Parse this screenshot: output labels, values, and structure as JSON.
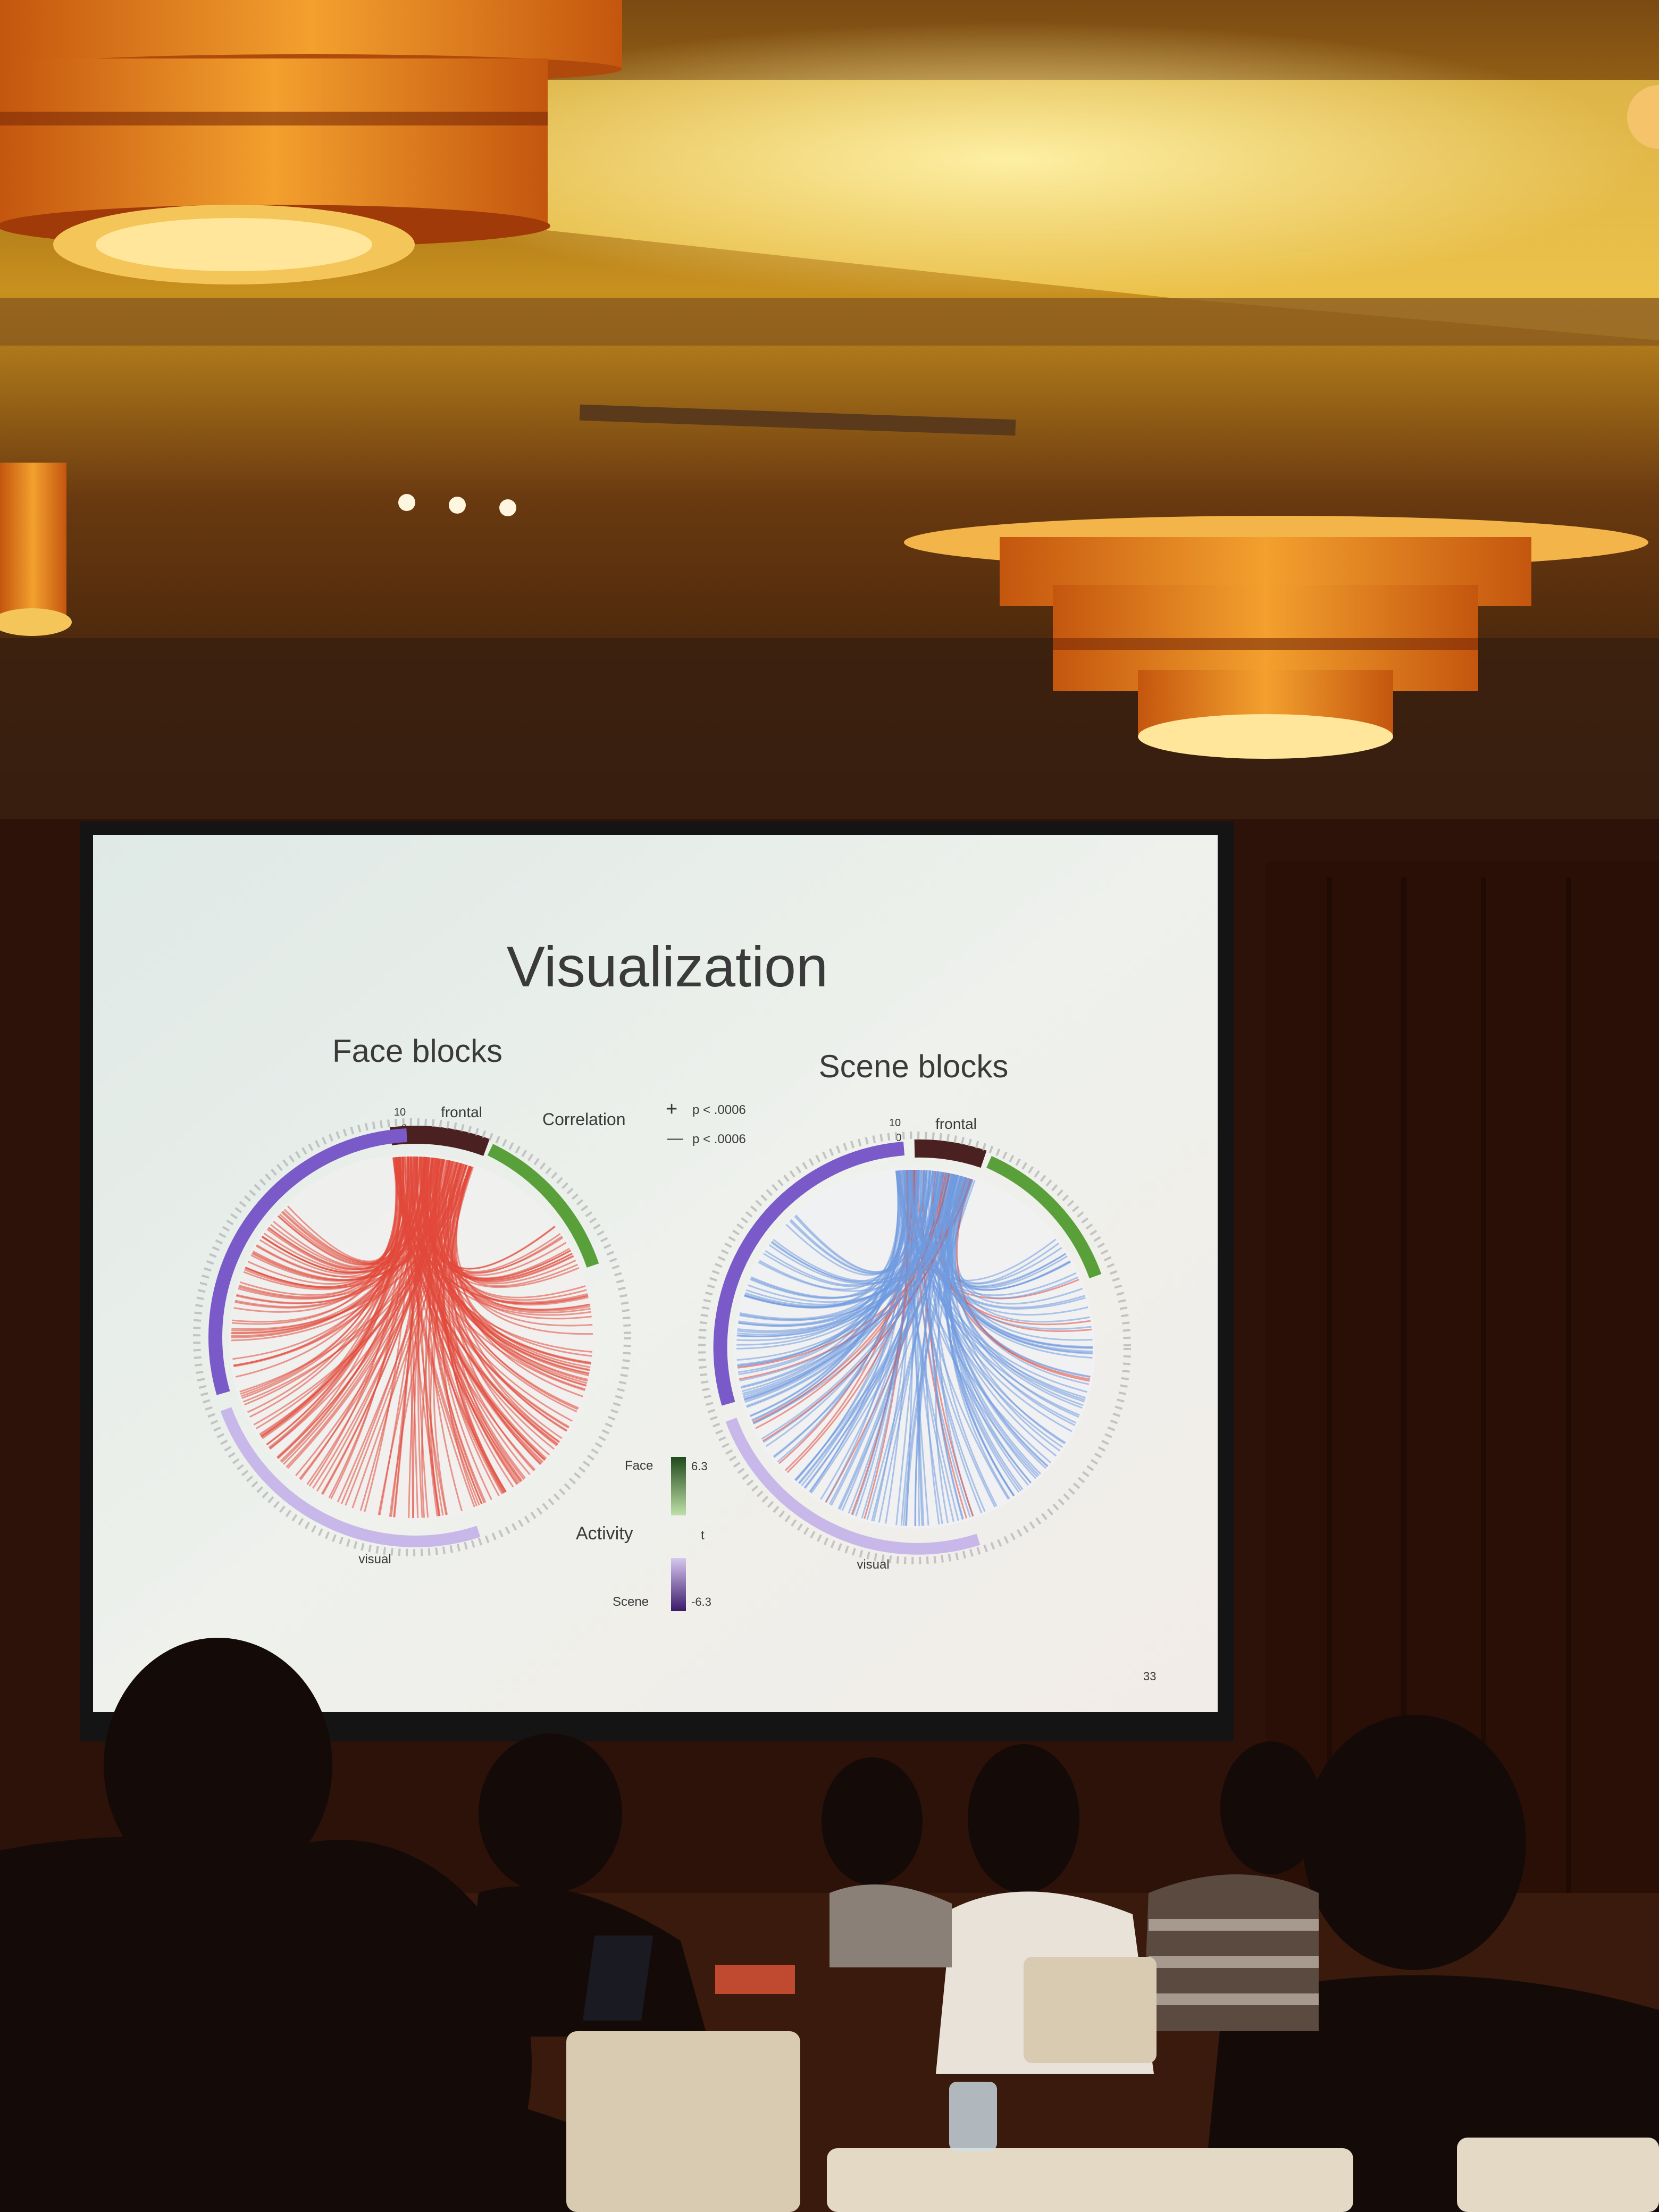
{
  "slide": {
    "title": "Visualization",
    "page_number": "33",
    "left_panel": {
      "title": "Face blocks",
      "scale_max": "10",
      "scale_min": "0",
      "label_top": "frontal",
      "label_bottom": "visual"
    },
    "right_panel": {
      "title": "Scene blocks",
      "scale_max": "10",
      "scale_min": "0",
      "label_top": "frontal",
      "label_bottom": "visual"
    },
    "correlation_legend": {
      "label": "Correlation",
      "positive_symbol": "+",
      "positive_text": "p < .0006",
      "negative_symbol": "—",
      "negative_text": "p < .0006"
    },
    "activity_legend": {
      "label": "Activity",
      "face_label": "Face",
      "face_value": "6.3",
      "mid_value": "t",
      "scene_label": "Scene",
      "scene_value": "-6.3"
    }
  },
  "colors": {
    "positive_link": "#e2483a",
    "negative_link": "#6f9ae0",
    "frontal_band": "#4a2020",
    "green_band": "#5aa03a",
    "purple_band": "#7a5ac8",
    "slide_bg": "#eef1ec"
  }
}
